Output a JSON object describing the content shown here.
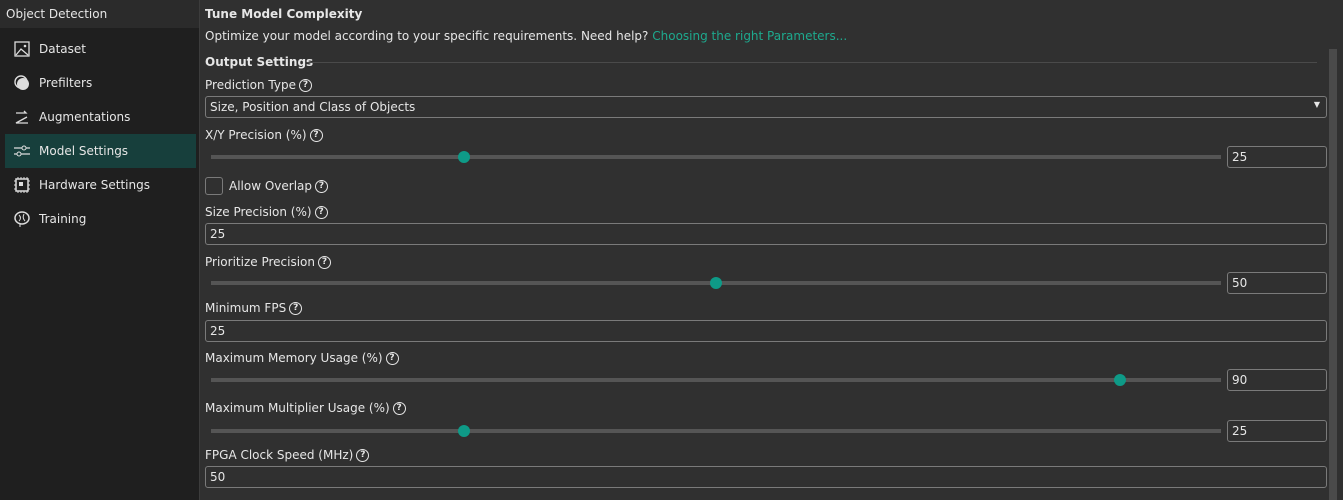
{
  "sidebar": {
    "title": "Object Detection",
    "items": [
      {
        "label": "Dataset",
        "icon": "image-icon"
      },
      {
        "label": "Prefilters",
        "icon": "filter-icon"
      },
      {
        "label": "Augmentations",
        "icon": "augment-icon"
      },
      {
        "label": "Model Settings",
        "icon": "sliders-icon",
        "selected": true
      },
      {
        "label": "Hardware Settings",
        "icon": "chip-icon"
      },
      {
        "label": "Training",
        "icon": "brain-icon"
      }
    ]
  },
  "main": {
    "title": "Tune Model Complexity",
    "description": "Optimize your model according to your specific requirements. Need help?",
    "help_link": "Choosing the right Parameters...",
    "section": "Output Settings",
    "prediction_type": {
      "label": "Prediction Type",
      "value": "Size, Position and Class of Objects"
    },
    "xy_precision": {
      "label": "X/Y Precision (%)",
      "value": "25",
      "percent": 25
    },
    "allow_overlap": {
      "label": "Allow Overlap",
      "checked": false
    },
    "size_precision": {
      "label": "Size Precision (%)",
      "value": "25"
    },
    "prioritize_precision": {
      "label": "Prioritize Precision",
      "value": "50",
      "percent": 50
    },
    "minimum_fps": {
      "label": "Minimum FPS",
      "value": "25"
    },
    "max_memory": {
      "label": "Maximum Memory Usage (%)",
      "value": "90",
      "percent": 90
    },
    "max_multiplier": {
      "label": "Maximum Multiplier Usage (%)",
      "value": "25",
      "percent": 25
    },
    "fpga_clock": {
      "label": "FPGA Clock Speed (MHz)",
      "value": "50"
    },
    "help_glyph": "?"
  },
  "colors": {
    "accent": "#0e9a87",
    "selected": "#173f3c",
    "link": "#1ea98e"
  }
}
